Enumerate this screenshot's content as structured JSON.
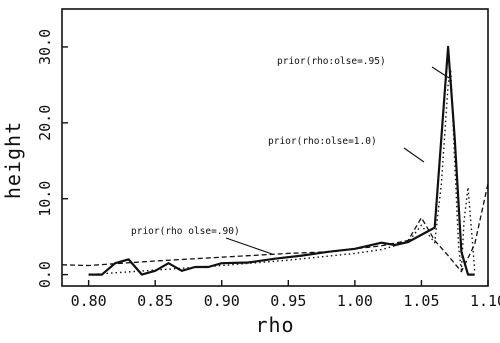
{
  "chart_data": {
    "type": "line",
    "title": "",
    "xlabel": "rho",
    "ylabel": "height",
    "xlim": [
      0.78,
      1.1
    ],
    "ylim": [
      -1.5,
      35
    ],
    "grid": false,
    "x_ticks": [
      0.8,
      0.85,
      0.9,
      0.95,
      1.0,
      1.05,
      1.1
    ],
    "x_tick_labels": [
      "0.80",
      "0.85",
      "0.90",
      "0.95",
      "1.00",
      "1.05",
      "1.10"
    ],
    "y_ticks": [
      0,
      10,
      20,
      30
    ],
    "y_tick_labels": [
      "0.0",
      "10.0",
      "20.0",
      "30.0"
    ],
    "series": [
      {
        "name": "prior(rho:olse=.95)",
        "line_style": "solid",
        "x": [
          0.8,
          0.81,
          0.82,
          0.83,
          0.84,
          0.85,
          0.86,
          0.87,
          0.88,
          0.89,
          0.9,
          0.92,
          0.94,
          0.96,
          0.98,
          1.0,
          1.02,
          1.03,
          1.04,
          1.06,
          1.07,
          1.075,
          1.08,
          1.085,
          1.09
        ],
        "y": [
          0.0,
          0.0,
          1.5,
          2.0,
          0.0,
          0.5,
          1.5,
          0.5,
          1.0,
          1.0,
          1.5,
          1.6,
          2.1,
          2.5,
          3.0,
          3.4,
          4.2,
          3.9,
          4.3,
          6.2,
          30.0,
          18.0,
          3.0,
          0.0,
          0.0
        ]
      },
      {
        "name": "prior(rho:olse=1.0)",
        "line_style": "dotted",
        "x": [
          0.8,
          0.85,
          0.9,
          0.95,
          1.0,
          1.02,
          1.04,
          1.05,
          1.06,
          1.065,
          1.07,
          1.072,
          1.075,
          1.078,
          1.08,
          1.082,
          1.085,
          1.088,
          1.09
        ],
        "y": [
          0.0,
          0.6,
          1.2,
          1.9,
          2.8,
          3.3,
          4.3,
          6.5,
          4.2,
          12.0,
          25.0,
          27.0,
          15.0,
          3.5,
          0.6,
          7.0,
          11.5,
          5.0,
          0.5
        ]
      },
      {
        "name": "prior(rho olse=.90)",
        "line_style": "dashed",
        "x": [
          0.78,
          0.8,
          0.85,
          0.9,
          0.95,
          0.98,
          1.0,
          1.02,
          1.04,
          1.05,
          1.06,
          1.07,
          1.08,
          1.09,
          1.1
        ],
        "y": [
          1.3,
          1.2,
          1.8,
          2.3,
          2.8,
          3.0,
          3.4,
          3.8,
          4.5,
          7.5,
          4.5,
          2.5,
          0.4,
          4.0,
          12.0
        ]
      }
    ],
    "annotations": [
      {
        "text": "prior(rho:olse=.95)",
        "series": 0
      },
      {
        "text": "prior(rho:olse=1.0)",
        "series": 1
      },
      {
        "text": "prior(rho olse=.90)",
        "series": 2
      }
    ]
  }
}
